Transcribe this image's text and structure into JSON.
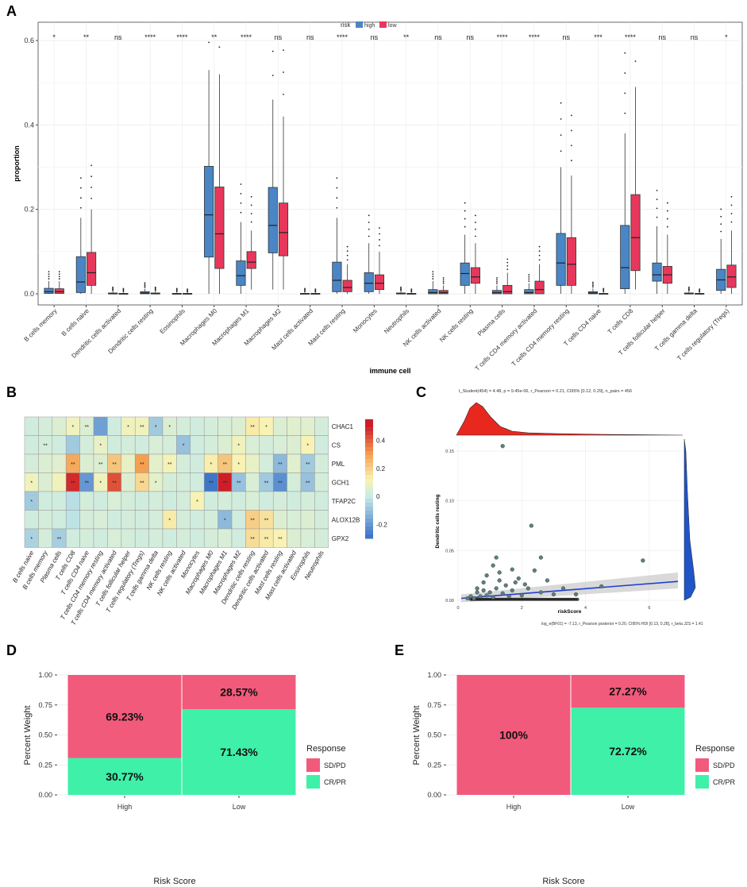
{
  "panels": {
    "a": "A",
    "b": "B",
    "c": "C",
    "d": "D",
    "e": "E"
  },
  "chart_data": [
    {
      "id": "A",
      "type": "boxplot",
      "legend": {
        "title": "risk",
        "items": [
          {
            "name": "high",
            "color": "#4a86c6"
          },
          {
            "name": "low",
            "color": "#e8375c"
          }
        ]
      },
      "xlabel": "immune cell",
      "ylabel": "proportion",
      "ylim": [
        0,
        0.6
      ],
      "yticks": [
        "0.0",
        "0.2",
        "0.4",
        "0.6"
      ],
      "categories": [
        "B cells memory",
        "B cells naive",
        "Dendritic cells activated",
        "Dendritic cells resting",
        "Eosinophils",
        "Macrophages M0",
        "Macrophages M1",
        "Macrophages M2",
        "Mast cells activated",
        "Mast cells resting",
        "Monocytes",
        "Neutrophils",
        "NK cells activated",
        "NK cells resting",
        "Plasma cells",
        "T cells CD4 memory activated",
        "T cells CD4 memory resting",
        "T cells CD4 naive",
        "T cells CD8",
        "T cells follicular helper",
        "T cells gamma delta",
        "T cells regulatory (Tregs)"
      ],
      "significance": [
        "*",
        "**",
        "ns",
        "****",
        "****",
        "**",
        "****",
        "ns",
        "ns",
        "****",
        "ns",
        "**",
        "ns",
        "ns",
        "****",
        "****",
        "ns",
        "***",
        "****",
        "ns",
        "ns",
        "*"
      ],
      "series": [
        {
          "name": "high",
          "boxes": [
            [
              0,
              0.001,
              0.005,
              0.013,
              0.03
            ],
            [
              0,
              0.003,
              0.028,
              0.088,
              0.18
            ],
            [
              0,
              0,
              0,
              0.002,
              0.005
            ],
            [
              0,
              0,
              0.002,
              0.005,
              0.012
            ],
            [
              0,
              0,
              0,
              0.001,
              0.003
            ],
            [
              0,
              0.087,
              0.187,
              0.302,
              0.53
            ],
            [
              0,
              0.02,
              0.043,
              0.078,
              0.17
            ],
            [
              0.01,
              0.097,
              0.162,
              0.252,
              0.46
            ],
            [
              0,
              0,
              0,
              0.001,
              0.003
            ],
            [
              0,
              0.005,
              0.032,
              0.075,
              0.18
            ],
            [
              0,
              0.005,
              0.025,
              0.05,
              0.12
            ],
            [
              0,
              0,
              0,
              0.002,
              0.005
            ],
            [
              0,
              0,
              0.003,
              0.01,
              0.03
            ],
            [
              0,
              0.02,
              0.048,
              0.073,
              0.14
            ],
            [
              0,
              0,
              0.003,
              0.008,
              0.02
            ],
            [
              0,
              0,
              0.003,
              0.01,
              0.025
            ],
            [
              0,
              0.02,
              0.073,
              0.143,
              0.3
            ],
            [
              0,
              0,
              0.002,
              0.005,
              0.013
            ],
            [
              0,
              0.012,
              0.062,
              0.162,
              0.38
            ],
            [
              0,
              0.03,
              0.045,
              0.073,
              0.16
            ],
            [
              0,
              0,
              0,
              0.002,
              0.005
            ],
            [
              0,
              0.008,
              0.033,
              0.058,
              0.13
            ]
          ]
        },
        {
          "name": "low",
          "boxes": [
            [
              0,
              0.001,
              0.005,
              0.012,
              0.03
            ],
            [
              0,
              0.02,
              0.05,
              0.098,
              0.2
            ],
            [
              0,
              0,
              0,
              0.001,
              0.003
            ],
            [
              0,
              0,
              0,
              0.002,
              0.005
            ],
            [
              0,
              0,
              0,
              0.001,
              0.002
            ],
            [
              0,
              0.06,
              0.142,
              0.253,
              0.52
            ],
            [
              0.01,
              0.06,
              0.075,
              0.1,
              0.15
            ],
            [
              0.01,
              0.09,
              0.145,
              0.215,
              0.42
            ],
            [
              0,
              0,
              0,
              0.001,
              0.002
            ],
            [
              0,
              0.005,
              0.015,
              0.032,
              0.07
            ],
            [
              0,
              0.01,
              0.025,
              0.045,
              0.1
            ],
            [
              0,
              0,
              0,
              0.001,
              0.002
            ],
            [
              0,
              0,
              0.003,
              0.008,
              0.02
            ],
            [
              0,
              0.025,
              0.04,
              0.062,
              0.12
            ],
            [
              0,
              0,
              0.005,
              0.02,
              0.05
            ],
            [
              0,
              0,
              0.01,
              0.03,
              0.07
            ],
            [
              0,
              0.02,
              0.07,
              0.133,
              0.28
            ],
            [
              0,
              0,
              0,
              0.001,
              0.003
            ],
            [
              0.01,
              0.055,
              0.133,
              0.235,
              0.49
            ],
            [
              0,
              0.025,
              0.045,
              0.065,
              0.14
            ],
            [
              0,
              0,
              0,
              0.001,
              0.002
            ],
            [
              0,
              0.015,
              0.04,
              0.068,
              0.15
            ]
          ]
        }
      ]
    },
    {
      "id": "B",
      "type": "heatmap",
      "rows": [
        "CHAC1",
        "CS",
        "PML",
        "GCH1",
        "TFAP2C",
        "ALOX12B",
        "GPX2"
      ],
      "columns": [
        "B cells naive",
        "B cells memory",
        "Plasma cells",
        "T cells CD8",
        "T cells CD4 naive",
        "T cells CD4 memory resting",
        "T cells CD4 memory activated",
        "T cells follicular helper",
        "T cells regulatory (Tregs)",
        "T cells gamma delta",
        "NK cells resting",
        "NK cells activated",
        "Monocytes",
        "Macrophages M0",
        "Macrophages M1",
        "Macrophages M2",
        "Dendritic cells resting",
        "Dendritic cells activated",
        "Mast cells resting",
        "Mast cells activated",
        "Eosinophils",
        "Neutrophils"
      ],
      "values": [
        [
          0.02,
          0.03,
          0.05,
          0.1,
          0.05,
          -0.18,
          0.02,
          0.1,
          0.1,
          -0.08,
          0.05,
          0.03,
          0.02,
          0.03,
          0.04,
          0.05,
          0.14,
          0.12,
          0.05,
          0.06,
          0.06,
          0.03
        ],
        [
          0.02,
          0.03,
          0.02,
          -0.08,
          0.03,
          0.08,
          0.02,
          0.03,
          0.02,
          0.04,
          0.03,
          -0.1,
          0.02,
          0.03,
          0.05,
          0.1,
          0.04,
          0.03,
          0.04,
          0.05,
          0.12,
          0.02
        ],
        [
          0.03,
          0.05,
          0.06,
          0.28,
          0.05,
          0.05,
          0.22,
          0.08,
          0.3,
          0.07,
          0.11,
          0.03,
          0.02,
          0.13,
          0.22,
          0.12,
          0.08,
          0.03,
          -0.12,
          0.06,
          -0.08,
          0.03
        ],
        [
          0.1,
          0.05,
          0.1,
          0.48,
          -0.2,
          0.1,
          0.42,
          0.05,
          0.18,
          0.07,
          0.03,
          0.03,
          0.02,
          -0.28,
          0.52,
          -0.1,
          0.04,
          -0.08,
          -0.22,
          0.03,
          -0.1,
          0.03
        ],
        [
          -0.08,
          0.02,
          0.02,
          -0.03,
          0.03,
          0.02,
          0.04,
          0.03,
          0.02,
          0.03,
          0.02,
          0.03,
          0.12,
          0.02,
          0.03,
          0.02,
          0.04,
          0.02,
          0.03,
          0.02,
          0.03,
          0.02
        ],
        [
          0.02,
          0.03,
          0.02,
          -0.02,
          0.03,
          0.04,
          0.02,
          0.03,
          0.02,
          0.03,
          0.14,
          0.03,
          0.02,
          0.03,
          -0.12,
          0.02,
          0.2,
          0.16,
          0.05,
          0.04,
          0.05,
          0.03
        ],
        [
          -0.06,
          0.03,
          -0.07,
          0.02,
          0.03,
          0.02,
          0.04,
          0.03,
          0.02,
          0.03,
          0.02,
          0.03,
          0.02,
          0.03,
          0.04,
          0.02,
          0.17,
          0.14,
          0.12,
          0.05,
          0.04,
          0.03
        ]
      ],
      "stars": [
        [
          "",
          "",
          "",
          "*",
          "**",
          "",
          "",
          "*",
          "**",
          "*",
          "*",
          "",
          "",
          "",
          "",
          "",
          "**",
          "*",
          "",
          "",
          "",
          ""
        ],
        [
          "",
          "**",
          "",
          "",
          "",
          "*",
          "",
          "",
          "",
          "",
          "",
          "*",
          "",
          "",
          "",
          "*",
          "",
          "",
          "",
          "",
          "*",
          ""
        ],
        [
          "",
          "",
          "",
          "**",
          "",
          "**",
          "**",
          "",
          "**",
          "",
          "**",
          "",
          "",
          "*",
          "**",
          "*",
          "",
          "",
          "**",
          "",
          "**",
          ""
        ],
        [
          "*",
          "",
          "",
          "**",
          "**",
          "*",
          "**",
          "",
          "**",
          "*",
          "",
          "",
          "",
          "**",
          "**",
          "**",
          "",
          "**",
          "**",
          "",
          "**",
          ""
        ],
        [
          "*",
          "",
          "",
          "",
          "",
          "",
          "",
          "",
          "",
          "",
          "",
          "",
          "*",
          "",
          "",
          "",
          "",
          "",
          "",
          "",
          "",
          ""
        ],
        [
          "",
          "",
          "",
          "",
          "",
          "",
          "",
          "",
          "",
          "",
          "*",
          "",
          "",
          "",
          "*",
          "",
          "**",
          "**",
          "",
          "",
          "",
          ""
        ],
        [
          "*",
          "",
          "**",
          "",
          "",
          "",
          "",
          "",
          "",
          "",
          "",
          "",
          "",
          "",
          "",
          "",
          "**",
          "**",
          "**",
          "",
          "",
          ""
        ]
      ],
      "scale": {
        "min": -0.3,
        "max": 0.55,
        "ticks": [
          "0.4",
          "0.2",
          "0",
          "-0.2"
        ]
      }
    },
    {
      "id": "C",
      "type": "scatter",
      "title_top": "t_Student(454) = 4.48, p = 9.45e-06, r_Pearson = 0.21, CI95% [0.12, 0.29], n_pairs = 456",
      "title_bottom": "log_e(BF01) = -7.13, r_Pearson posterior = 0.20, CI95% HDI [0.13, 0.28], r_beta JZS = 1.41",
      "xlabel": "riskScore",
      "ylabel": "Dendritic cells resting",
      "xlim": [
        0,
        7
      ],
      "ylim": [
        0,
        0.16
      ],
      "xticks": [
        "0",
        "2",
        "4",
        "6"
      ],
      "yticks": [
        "0.00",
        "0.05",
        "0.10",
        "0.15"
      ],
      "points": [
        [
          0.5,
          0.002
        ],
        [
          0.7,
          0.004
        ],
        [
          0.8,
          0.01
        ],
        [
          0.9,
          0.005
        ],
        [
          1.0,
          0.008
        ],
        [
          1.1,
          0.003
        ],
        [
          1.2,
          0.012
        ],
        [
          1.3,
          0.02
        ],
        [
          1.4,
          0.007
        ],
        [
          1.5,
          0.015
        ],
        [
          1.6,
          0.004
        ],
        [
          1.7,
          0.01
        ],
        [
          1.8,
          0.018
        ],
        [
          2.0,
          0.005
        ],
        [
          2.2,
          0.012
        ],
        [
          2.4,
          0.03
        ],
        [
          2.6,
          0.008
        ],
        [
          2.8,
          0.02
        ],
        [
          3.0,
          0.006
        ],
        [
          1.2,
          0.043
        ],
        [
          0.9,
          0.025
        ],
        [
          1.7,
          0.031
        ],
        [
          2.3,
          0.075
        ],
        [
          2.6,
          0.043
        ],
        [
          1.1,
          0.035
        ],
        [
          0.6,
          0.008
        ],
        [
          0.4,
          0.004
        ],
        [
          3.3,
          0.012
        ],
        [
          4.5,
          0.014
        ],
        [
          5.8,
          0.04
        ],
        [
          1.4,
          0.155
        ],
        [
          0.3,
          0.002
        ],
        [
          0.6,
          0.012
        ],
        [
          1.9,
          0.022
        ],
        [
          0.8,
          0.018
        ],
        [
          1.3,
          0.028
        ],
        [
          2.1,
          0.016
        ],
        [
          3.7,
          0.006
        ]
      ],
      "fit": {
        "x": [
          0.1,
          6.9
        ],
        "y": [
          0.002,
          0.019
        ]
      }
    },
    {
      "id": "D",
      "type": "stacked_bar",
      "categories": [
        "High",
        "Low"
      ],
      "series": [
        {
          "name": "SD/PD",
          "color": "#f25a7b",
          "values": [
            69.23,
            28.57
          ],
          "labels": [
            "69.23%",
            "28.57%"
          ]
        },
        {
          "name": "CR/PR",
          "color": "#3ef0a8",
          "values": [
            30.77,
            71.43
          ],
          "labels": [
            "30.77%",
            "71.43%"
          ]
        }
      ],
      "xlabel": "Risk Score",
      "ylabel": "Percent Weight",
      "legend_title": "Response",
      "yticks": [
        "0.00",
        "0.25",
        "0.50",
        "0.75",
        "1.00"
      ]
    },
    {
      "id": "E",
      "type": "stacked_bar",
      "categories": [
        "High",
        "Low"
      ],
      "series": [
        {
          "name": "SD/PD",
          "color": "#f25a7b",
          "values": [
            100,
            27.27
          ],
          "labels": [
            "100%",
            "27.27%"
          ]
        },
        {
          "name": "CR/PR",
          "color": "#3ef0a8",
          "values": [
            0,
            72.72
          ],
          "labels": [
            "",
            "72.72%"
          ]
        }
      ],
      "xlabel": "Risk Score",
      "ylabel": "Percent Weight",
      "legend_title": "Response",
      "yticks": [
        "0.00",
        "0.25",
        "0.50",
        "0.75",
        "1.00"
      ]
    }
  ]
}
